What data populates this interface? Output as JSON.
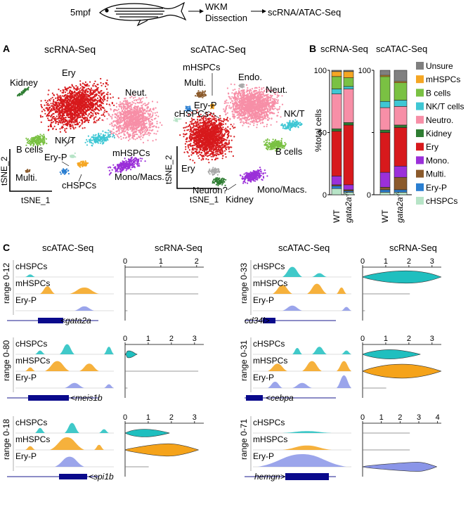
{
  "workflow": {
    "age_label": "5mpf",
    "step1_line1": "WKM",
    "step1_line2": "Dissection",
    "step2": "scRNA/ATAC-Seq"
  },
  "panels": {
    "a": "A",
    "b": "B",
    "c": "C"
  },
  "tsne": {
    "rna_title": "scRNA-Seq",
    "atac_title": "scATAC-Seq",
    "axis_x": "tSNE_1",
    "axis_y": "tSNE_2",
    "rna_labels": {
      "kidney": "Kidney",
      "ery": "Ery",
      "neut": "Neut.",
      "bcells": "B cells",
      "nkt": "NK/T",
      "eryp": "Ery-P",
      "mhspcs": "mHSPCs",
      "multi": "Multi.",
      "cHSPCs": "cHSPCs",
      "mono": "Mono/Macs."
    },
    "atac_labels": {
      "mhspcs": "mHSPCs",
      "endo": "Endo.",
      "multi": "Multi.",
      "eryp": "Ery-P",
      "chspcs": "cHSPCs",
      "neut": "Neut.",
      "nkt": "NK/T",
      "ery": "Ery",
      "bcells": "B cells",
      "neuron": "Neuron?",
      "kidney": "Kidney",
      "mono": "Mono/Macs."
    },
    "colors": {
      "ery": "#d7191c",
      "neut": "#f78fa7",
      "bcells": "#7ac143",
      "nkt": "#3fc7d4",
      "mhspcs": "#f5a623",
      "mono": "#9b30d9",
      "multi": "#8b5a2b",
      "eryp": "#2b7fd1",
      "kidney": "#2e7d32",
      "chspcs": "#b7e4c7",
      "endo": "#aaaaaa"
    }
  },
  "bar": {
    "rna_title": "scRNA-Seq",
    "atac_title": "scATAC-Seq",
    "ylabel": "%total cells",
    "tick_100": "100",
    "tick_50": "50",
    "tick_0": "0",
    "genotypes": [
      "WT",
      "gata2a"
    ],
    "genotype_sup": "-/-",
    "legend": [
      {
        "label": "Unsure",
        "color": "#808080"
      },
      {
        "label": "mHSPCs",
        "color": "#f5a623"
      },
      {
        "label": "B cells",
        "color": "#7ac143"
      },
      {
        "label": "NK/T cells",
        "color": "#3fc7d4"
      },
      {
        "label": "Neutro.",
        "color": "#f78fa7"
      },
      {
        "label": "Kidney",
        "color": "#2e7d32"
      },
      {
        "label": "Ery",
        "color": "#d7191c"
      },
      {
        "label": "Mono.",
        "color": "#9b30d9"
      },
      {
        "label": "Multi.",
        "color": "#8b5a2b"
      },
      {
        "label": "Ery-P",
        "color": "#2b7fd1"
      },
      {
        "label": "cHSPCs",
        "color": "#b7e4c7"
      }
    ]
  },
  "chart_data": {
    "type": "bar",
    "title": "",
    "ylabel": "%total cells",
    "ylim": [
      0,
      100
    ],
    "stacked": true,
    "groups": [
      "scRNA-Seq",
      "scATAC-Seq"
    ],
    "categories": [
      "WT",
      "gata2a-/-"
    ],
    "order_bottom_to_top": [
      "cHSPCs",
      "Ery-P",
      "Multi.",
      "Mono.",
      "Ery",
      "Kidney",
      "Neutro.",
      "NK/T cells",
      "B cells",
      "mHSPCs",
      "Unsure"
    ],
    "series_rna": [
      {
        "name": "cHSPCs",
        "values": [
          5,
          2
        ]
      },
      {
        "name": "Ery-P",
        "values": [
          2,
          1
        ]
      },
      {
        "name": "Multi.",
        "values": [
          1,
          1
        ]
      },
      {
        "name": "Mono.",
        "values": [
          7,
          4
        ]
      },
      {
        "name": "Ery",
        "values": [
          36,
          48
        ]
      },
      {
        "name": "Kidney",
        "values": [
          2,
          2
        ]
      },
      {
        "name": "Neutro.",
        "values": [
          28,
          27
        ]
      },
      {
        "name": "NK/T cells",
        "values": [
          4,
          2
        ]
      },
      {
        "name": "B cells",
        "values": [
          10,
          7
        ]
      },
      {
        "name": "mHSPCs",
        "values": [
          4,
          5
        ]
      },
      {
        "name": "Unsure",
        "values": [
          1,
          1
        ]
      }
    ],
    "series_atac": [
      {
        "name": "cHSPCs",
        "values": [
          2,
          2
        ]
      },
      {
        "name": "Ery-P",
        "values": [
          2,
          2
        ]
      },
      {
        "name": "Multi.",
        "values": [
          2,
          10
        ]
      },
      {
        "name": "Mono.",
        "values": [
          12,
          9
        ]
      },
      {
        "name": "Ery",
        "values": [
          32,
          31
        ]
      },
      {
        "name": "Kidney",
        "values": [
          2,
          2
        ]
      },
      {
        "name": "Neutro.",
        "values": [
          18,
          15
        ]
      },
      {
        "name": "NK/T cells",
        "values": [
          5,
          5
        ]
      },
      {
        "name": "B cells",
        "values": [
          20,
          14
        ]
      },
      {
        "name": "mHSPCs",
        "values": [
          1,
          1
        ]
      },
      {
        "name": "Unsure",
        "values": [
          4,
          9
        ]
      }
    ]
  },
  "tracks": {
    "atac_title": "scATAC-Seq",
    "rna_title": "scRNA-Seq",
    "cell_types": [
      "cHSPCs",
      "mHSPCs",
      "Ery-P"
    ],
    "genes": [
      {
        "gene": "gata2a",
        "gene_label": "<gata2a",
        "range": "range 0-12",
        "ticks": [
          "0",
          "1",
          "2"
        ]
      },
      {
        "gene": "meis1b",
        "gene_label": "<meis1b",
        "range": "range 0-80",
        "ticks": [
          "0",
          "1",
          "2",
          "3"
        ]
      },
      {
        "gene": "spi1b",
        "gene_label": "<spi1b",
        "range": "range 0-18",
        "ticks": [
          "0",
          "1",
          "2",
          "3"
        ]
      },
      {
        "gene": "cd34l",
        "gene_label": "cd34l>",
        "range": "range 0-33",
        "ticks": [
          "0",
          "1",
          "2",
          "3"
        ]
      },
      {
        "gene": "cebpa",
        "gene_label": "<cebpa",
        "range": "range 0-31",
        "ticks": [
          "0",
          "1",
          "2",
          "3"
        ]
      },
      {
        "gene": "hemgn",
        "gene_label": "hemgn>",
        "range": "range 0-71",
        "ticks": [
          "0",
          "1",
          "2",
          "3",
          "4"
        ]
      }
    ]
  }
}
